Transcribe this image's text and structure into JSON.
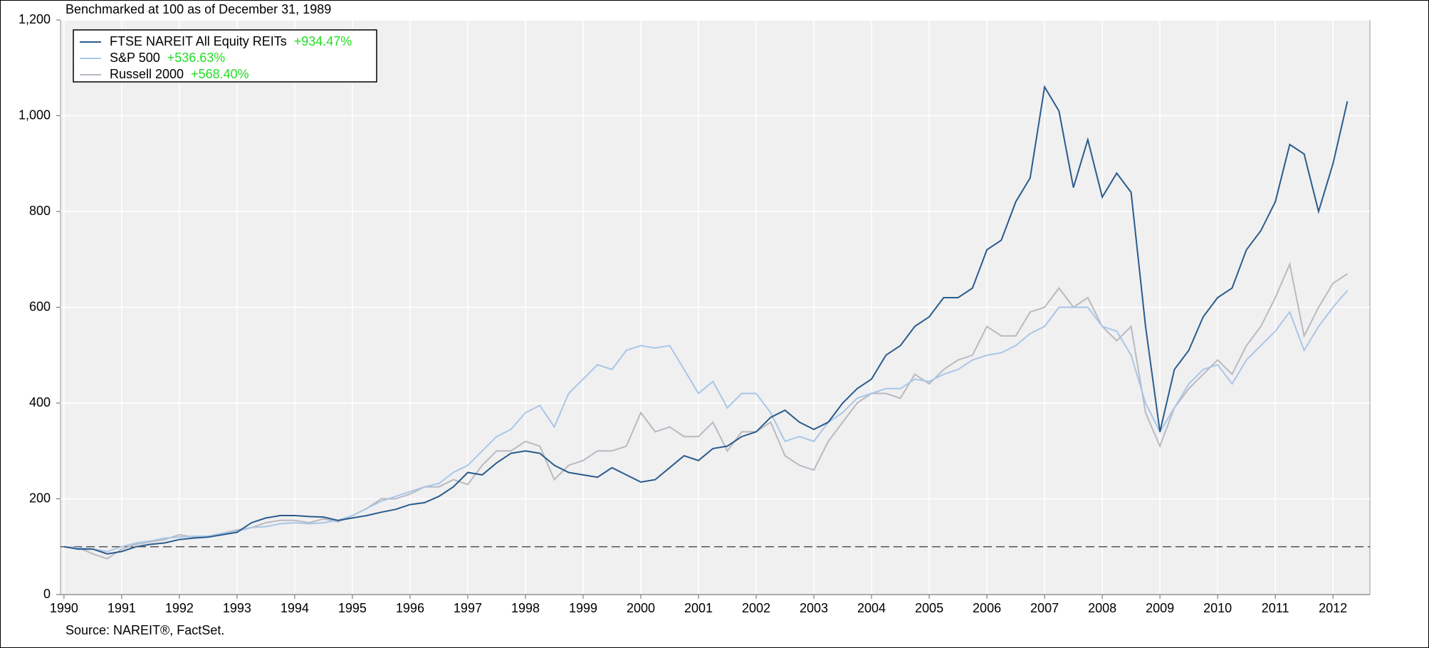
{
  "chart_data": {
    "type": "line",
    "title": "Benchmarked at 100 as of December 31, 1989",
    "source": "Source: NAREIT®, FactSet.",
    "x": [
      1990,
      1990.25,
      1990.5,
      1990.75,
      1991,
      1991.25,
      1991.5,
      1991.75,
      1992,
      1992.25,
      1992.5,
      1992.75,
      1993,
      1993.25,
      1993.5,
      1993.75,
      1994,
      1994.25,
      1994.5,
      1994.75,
      1995,
      1995.25,
      1995.5,
      1995.75,
      1996,
      1996.25,
      1996.5,
      1996.75,
      1997,
      1997.25,
      1997.5,
      1997.75,
      1998,
      1998.25,
      1998.5,
      1998.75,
      1999,
      1999.25,
      1999.5,
      1999.75,
      2000,
      2000.25,
      2000.5,
      2000.75,
      2001,
      2001.25,
      2001.5,
      2001.75,
      2002,
      2002.25,
      2002.5,
      2002.75,
      2003,
      2003.25,
      2003.5,
      2003.75,
      2004,
      2004.25,
      2004.5,
      2004.75,
      2005,
      2005.25,
      2005.5,
      2005.75,
      2006,
      2006.25,
      2006.5,
      2006.75,
      2007,
      2007.25,
      2007.5,
      2007.75,
      2008,
      2008.25,
      2008.5,
      2008.75,
      2009,
      2009.25,
      2009.5,
      2009.75,
      2010,
      2010.25,
      2010.5,
      2010.75,
      2011,
      2011.25,
      2011.5,
      2011.75,
      2012,
      2012.25
    ],
    "series": [
      {
        "name": "FTSE NAREIT All Equity REITs",
        "return_label": "+934.47%",
        "color": "#2a5b8c",
        "values": [
          100,
          95,
          95,
          85,
          90,
          100,
          105,
          108,
          115,
          118,
          120,
          125,
          130,
          150,
          160,
          165,
          165,
          163,
          162,
          155,
          160,
          165,
          172,
          178,
          188,
          192,
          205,
          225,
          255,
          250,
          275,
          295,
          300,
          295,
          270,
          255,
          250,
          245,
          265,
          250,
          235,
          240,
          265,
          290,
          280,
          305,
          310,
          330,
          340,
          370,
          385,
          360,
          345,
          360,
          400,
          430,
          450,
          500,
          520,
          560,
          580,
          620,
          620,
          640,
          720,
          740,
          820,
          870,
          1060,
          1010,
          850,
          950,
          830,
          880,
          840,
          560,
          340,
          470,
          510,
          580,
          620,
          640,
          720,
          760,
          820,
          940,
          920,
          800,
          900,
          1030
        ]
      },
      {
        "name": "S&P 500",
        "return_label": "+536.63%",
        "color": "#a9c6e8",
        "values": [
          100,
          98,
          95,
          90,
          100,
          108,
          112,
          118,
          120,
          122,
          122,
          128,
          132,
          140,
          142,
          148,
          150,
          148,
          150,
          155,
          165,
          180,
          195,
          205,
          215,
          225,
          232,
          255,
          270,
          300,
          330,
          345,
          380,
          395,
          350,
          420,
          450,
          480,
          470,
          510,
          520,
          515,
          520,
          470,
          420,
          445,
          390,
          420,
          420,
          380,
          320,
          330,
          320,
          360,
          380,
          410,
          420,
          430,
          430,
          450,
          445,
          460,
          470,
          490,
          500,
          505,
          520,
          545,
          560,
          600,
          600,
          600,
          560,
          550,
          500,
          400,
          340,
          390,
          440,
          470,
          480,
          440,
          490,
          520,
          550,
          590,
          510,
          560,
          600,
          635
        ]
      },
      {
        "name": "Russell 2000",
        "return_label": "+568.40%",
        "color": "#b9b9c2",
        "values": [
          100,
          98,
          85,
          75,
          95,
          105,
          110,
          115,
          125,
          120,
          122,
          128,
          135,
          140,
          150,
          155,
          155,
          150,
          158,
          152,
          165,
          180,
          200,
          200,
          210,
          225,
          225,
          240,
          230,
          270,
          300,
          300,
          320,
          310,
          240,
          270,
          280,
          300,
          300,
          310,
          380,
          340,
          350,
          330,
          330,
          360,
          300,
          340,
          340,
          360,
          290,
          270,
          260,
          320,
          360,
          400,
          420,
          420,
          410,
          460,
          440,
          470,
          490,
          500,
          560,
          540,
          540,
          590,
          600,
          640,
          600,
          620,
          560,
          530,
          560,
          380,
          310,
          390,
          430,
          460,
          490,
          460,
          520,
          560,
          620,
          690,
          540,
          600,
          650,
          670
        ]
      }
    ],
    "reference_line": 100,
    "return_color": "#22dd22",
    "xlim": [
      1989.94,
      2012.64
    ],
    "xticks": [
      1990,
      1991,
      1992,
      1993,
      1994,
      1995,
      1996,
      1997,
      1998,
      1999,
      2000,
      2001,
      2002,
      2003,
      2004,
      2005,
      2006,
      2007,
      2008,
      2009,
      2010,
      2011,
      2012
    ],
    "ylim": [
      0,
      1200
    ],
    "yticks": [
      0,
      200,
      400,
      600,
      800,
      {
        "value": 1000,
        "label": "1,000"
      },
      {
        "value": 1200,
        "label": "1,200"
      }
    ],
    "grid": true
  }
}
